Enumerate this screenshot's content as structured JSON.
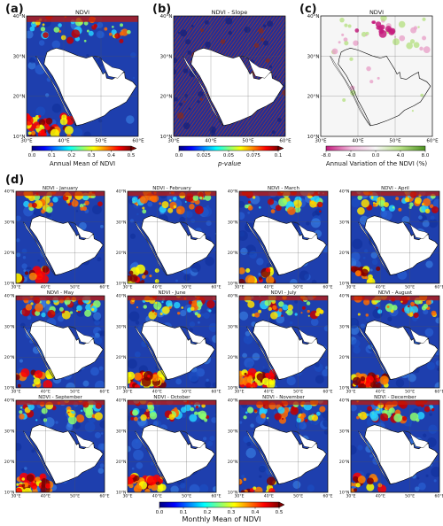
{
  "colors": {
    "sea_blue": "#1f3fa8",
    "land_mask": "#ffffff",
    "jet": [
      "#00007f",
      "#0000ff",
      "#0080ff",
      "#00ffff",
      "#80ff80",
      "#ffff00",
      "#ff8000",
      "#ff0000",
      "#7f0000"
    ],
    "diverging": [
      "#c51b7d",
      "#f1b6da",
      "#f7f7f7",
      "#b8e186",
      "#4d9221"
    ]
  },
  "panels": {
    "a": {
      "letter": "(a)",
      "title": "NDVI"
    },
    "b": {
      "letter": "(b)",
      "title": "NDVI - Slope"
    },
    "c": {
      "letter": "(c)",
      "title": "NDVI"
    },
    "d": {
      "letter": "(d)"
    }
  },
  "chart_data": [
    {
      "type": "heatmap",
      "title": "NDVI",
      "panel": "(a)",
      "colorbar_label": "Annual Mean of NDVI",
      "colorbar_ticks": [
        "0.0",
        "0.1",
        "0.2",
        "0.3",
        "0.4",
        "0.5"
      ],
      "colorbar_range": [
        0.0,
        0.5
      ],
      "x_ticks": [
        "30°E",
        "40°E",
        "50°E",
        "60°E"
      ],
      "y_ticks": [
        "10°N",
        "20°N",
        "30°N",
        "40°N"
      ],
      "colormap": "jet"
    },
    {
      "type": "heatmap",
      "title": "NDVI - Slope",
      "panel": "(b)",
      "colorbar_label": "p-value",
      "colorbar_ticks": [
        "0.0",
        "0.025",
        "0.05",
        "0.075",
        "0.1"
      ],
      "colorbar_range": [
        0.0,
        0.1
      ],
      "x_ticks": [
        "30°E",
        "40°E",
        "50°E",
        "60°E"
      ],
      "y_ticks": [
        "10°N",
        "20°N",
        "30°N",
        "40°N"
      ],
      "colormap": "jet"
    },
    {
      "type": "heatmap",
      "title": "NDVI",
      "panel": "(c)",
      "colorbar_label": "Annual Variation of the NDVI (%)",
      "colorbar_ticks": [
        "-8.0",
        "-4.0",
        "0.0",
        "4.0",
        "8.0"
      ],
      "colorbar_range": [
        -8.0,
        8.0
      ],
      "x_ticks": [
        "30°E",
        "40°E",
        "50°E",
        "60°E"
      ],
      "y_ticks": [
        "10°N",
        "20°N",
        "30°N",
        "40°N"
      ],
      "colormap": "diverging"
    },
    {
      "type": "heatmap",
      "panel": "(d)",
      "titles": [
        "NDVI - January",
        "NDVI - February",
        "NDVI - March",
        "NDVI - April",
        "NDVI - May",
        "NDVI - June",
        "NDVI - July",
        "NDVI - August",
        "NDVI - September",
        "NDVI - October",
        "NDVI - November",
        "NDVI - December"
      ],
      "colorbar_label": "Monthly Mean of NDVI",
      "colorbar_ticks": [
        "0.0",
        "0.1",
        "0.2",
        "0.3",
        "0.4",
        "0.5"
      ],
      "colorbar_range": [
        0.0,
        0.5
      ],
      "x_ticks": [
        "30°E",
        "40°E",
        "50°E",
        "60°E"
      ],
      "y_ticks": [
        "10°N",
        "20°N",
        "30°N",
        "40°N"
      ],
      "colormap": "jet"
    }
  ]
}
